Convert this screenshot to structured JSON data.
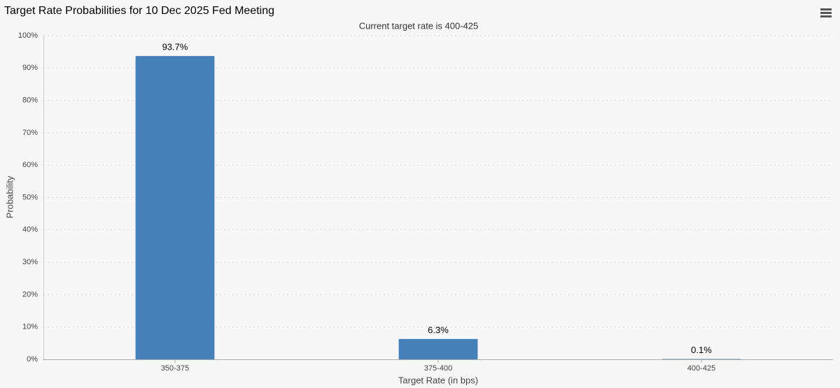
{
  "chart_data": {
    "type": "bar",
    "title": "Target Rate Probabilities for 10 Dec 2025 Fed Meeting",
    "subtitle": "Current target rate is 400-425",
    "x_label": "Target Rate (in bps)",
    "y_label": "Probability",
    "categories": [
      "350-375",
      "375-400",
      "400-425"
    ],
    "values": [
      93.7,
      6.3,
      0.1
    ],
    "value_labels": [
      "93.7%",
      "6.3%",
      "0.1%"
    ],
    "color": "#4580b9",
    "ylim": [
      0,
      100
    ],
    "yticks": [
      {
        "value": 0,
        "label": "0%"
      },
      {
        "value": 10,
        "label": "10%"
      },
      {
        "value": 20,
        "label": "20%"
      },
      {
        "value": 30,
        "label": "30%"
      },
      {
        "value": 40,
        "label": "40%"
      },
      {
        "value": 50,
        "label": "50%"
      },
      {
        "value": 60,
        "label": "60%"
      },
      {
        "value": 70,
        "label": "70%"
      },
      {
        "value": 80,
        "label": "80%"
      },
      {
        "value": 90,
        "label": "90%"
      },
      {
        "value": 100,
        "label": "100%"
      }
    ],
    "grid": true
  }
}
